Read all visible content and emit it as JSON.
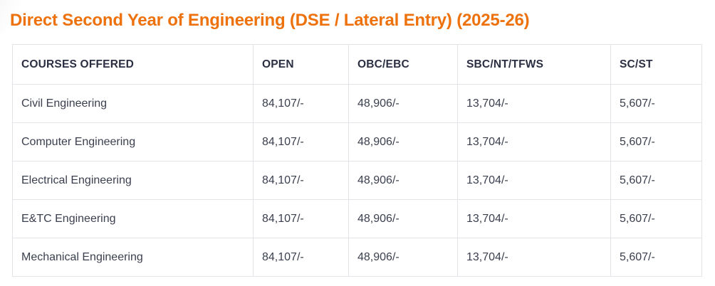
{
  "page": {
    "title": "Direct Second Year of Engineering (DSE / Lateral Entry) (2025-26)"
  },
  "colors": {
    "accent": "#ED720E",
    "header_text": "#2B2F42",
    "body_text": "#3A3F4E",
    "border": "#E3E4E7",
    "background": "#FFFFFF"
  },
  "table": {
    "columns": [
      "COURSES OFFERED",
      "OPEN",
      "OBC/EBC",
      "SBC/NT/TFWS",
      "SC/ST"
    ],
    "rows": [
      [
        "Civil Engineering",
        "84,107/-",
        "48,906/-",
        "13,704/-",
        "5,607/-"
      ],
      [
        "Computer Engineering",
        "84,107/-",
        "48,906/-",
        "13,704/-",
        "5,607/-"
      ],
      [
        "Electrical Engineering",
        "84,107/-",
        "48,906/-",
        "13,704/-",
        "5,607/-"
      ],
      [
        "E&TC Engineering",
        "84,107/-",
        "48,906/-",
        "13,704/-",
        "5,607/-"
      ],
      [
        "Mechanical Engineering",
        "84,107/-",
        "48,906/-",
        "13,704/-",
        "5,607/-"
      ]
    ]
  }
}
